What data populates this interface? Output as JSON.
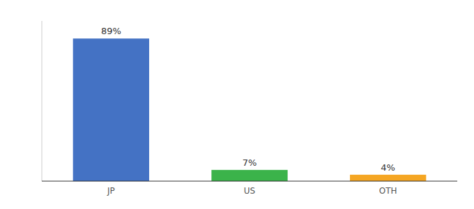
{
  "chart_data": {
    "type": "bar",
    "categories": [
      "JP",
      "US",
      "OTH"
    ],
    "values": [
      89,
      7,
      4
    ],
    "value_labels": [
      "89%",
      "7%",
      "4%"
    ],
    "colors": [
      "#4472C4",
      "#3BB34A",
      "#F5A623"
    ],
    "ylim": [
      0,
      100
    ],
    "data_labels": true,
    "tick_labels": "x",
    "grid": false
  }
}
